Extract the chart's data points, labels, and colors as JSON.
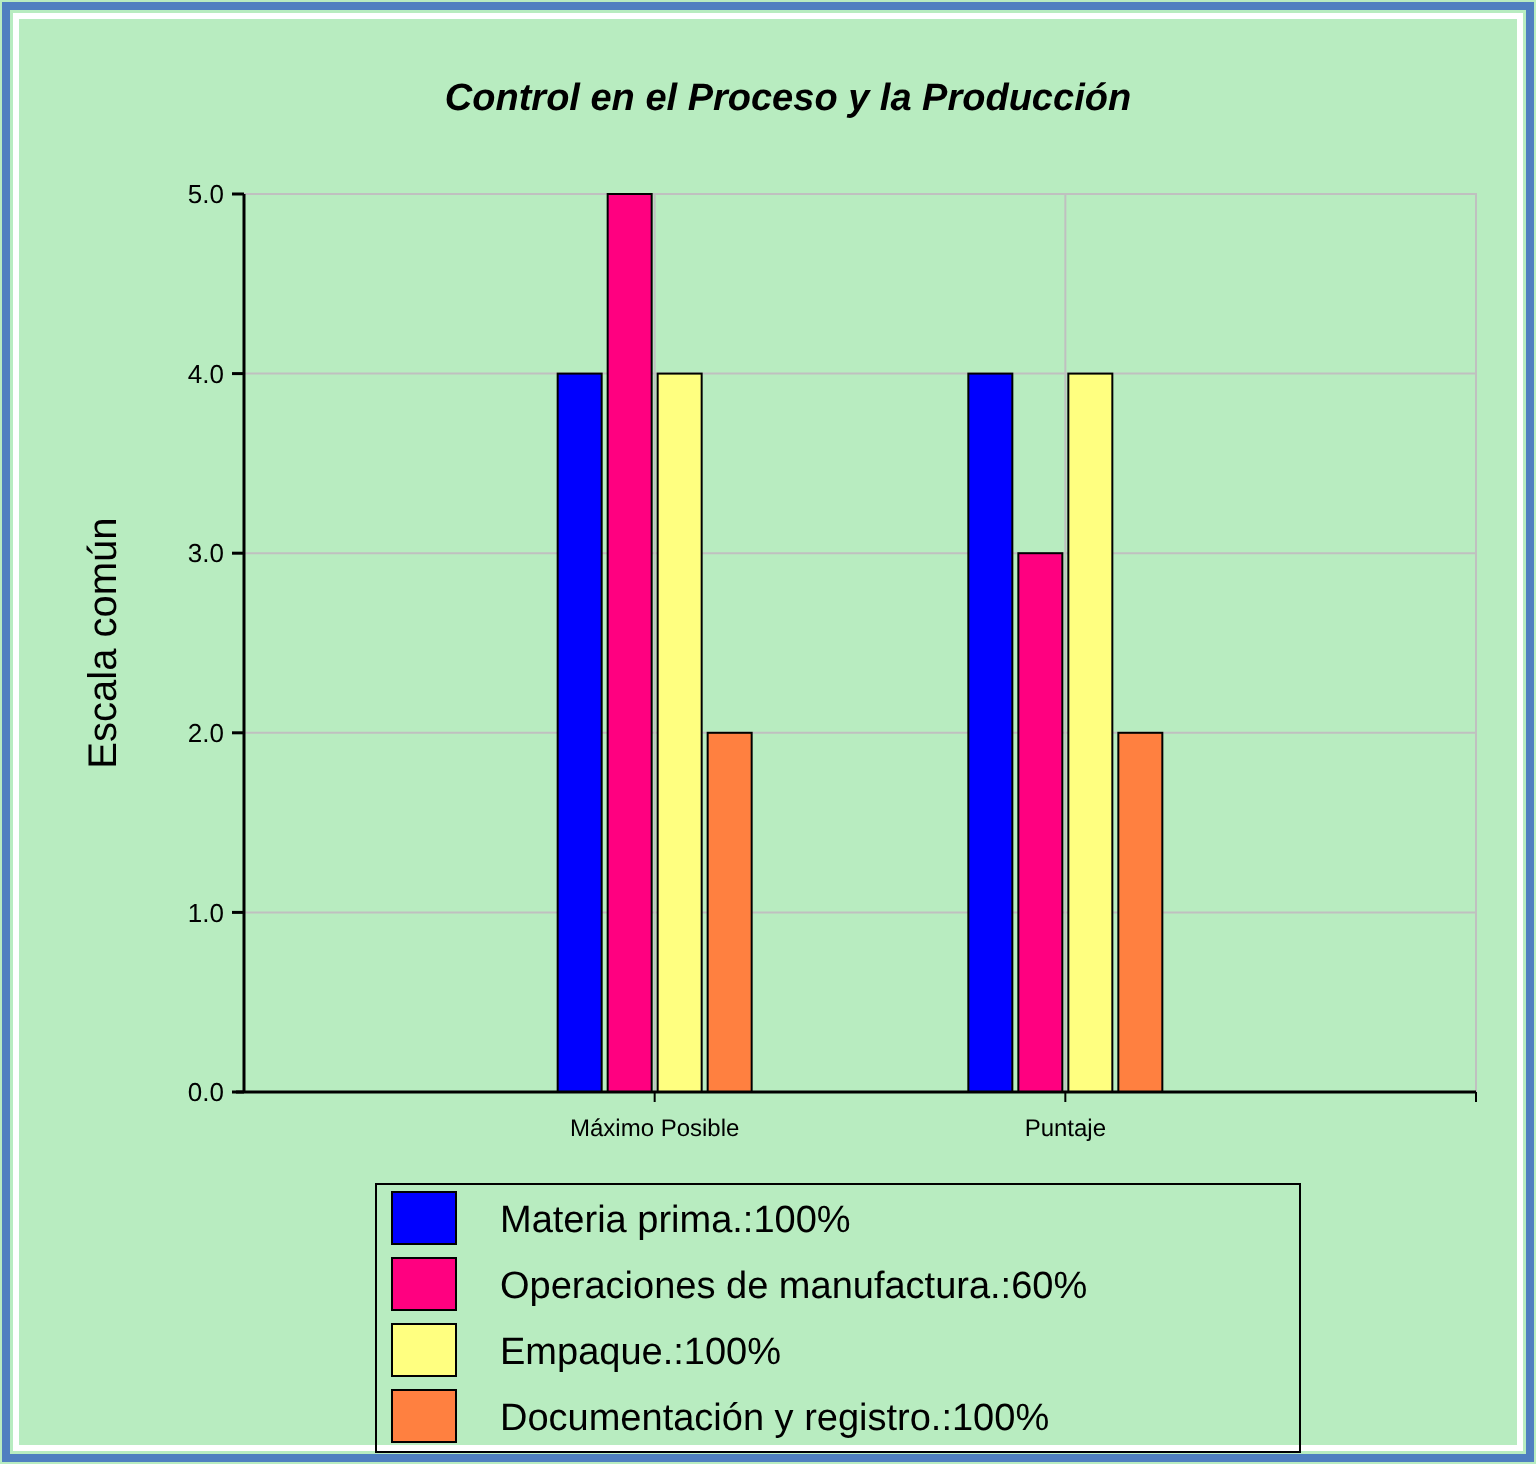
{
  "chart_data": {
    "type": "bar",
    "title": "Control en el Proceso y la Producción",
    "ylabel": "Escala común",
    "categories": [
      "Máximo Posible",
      "Puntaje"
    ],
    "series": [
      {
        "name": "Materia prima.:100%",
        "color": "#0000ff",
        "values": [
          4,
          4
        ]
      },
      {
        "name": "Operaciones de manufactura.:60%",
        "color": "#ff0080",
        "values": [
          5,
          3
        ]
      },
      {
        "name": "Empaque.:100%",
        "color": "#ffff80",
        "values": [
          4,
          4
        ]
      },
      {
        "name": "Documentación y registro.:100%",
        "color": "#ff8040",
        "values": [
          2,
          2
        ]
      }
    ],
    "ylim": [
      0,
      5
    ],
    "yticks": [
      {
        "value": 0,
        "label": "0.0"
      },
      {
        "value": 1,
        "label": "1.0"
      },
      {
        "value": 2,
        "label": "2.0"
      },
      {
        "value": 3,
        "label": "3.0"
      },
      {
        "value": 4,
        "label": "4.0"
      },
      {
        "value": 5,
        "label": "5.0"
      }
    ],
    "grid": true,
    "legend": "bottom"
  }
}
